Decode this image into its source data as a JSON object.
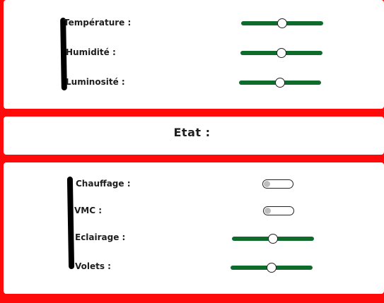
{
  "sensors": {
    "items": [
      {
        "label": "Température :",
        "value_fraction": 0.5
      },
      {
        "label": "Humidité :",
        "value_fraction": 0.5
      },
      {
        "label": "Luminosité :",
        "value_fraction": 0.5
      }
    ]
  },
  "etat": {
    "title": "Etat :"
  },
  "actuators": {
    "chauffage": {
      "label": "Chauffage :",
      "state": "off"
    },
    "vmc": {
      "label": "VMC :",
      "state": "off"
    },
    "eclairage": {
      "label": "Eclairage :",
      "value_fraction": 0.5
    },
    "volets": {
      "label": "Volets :",
      "value_fraction": 0.5
    }
  },
  "colors": {
    "background": "#ff0a0a",
    "slider_track": "#0f6b2c",
    "panel": "#ffffff"
  }
}
